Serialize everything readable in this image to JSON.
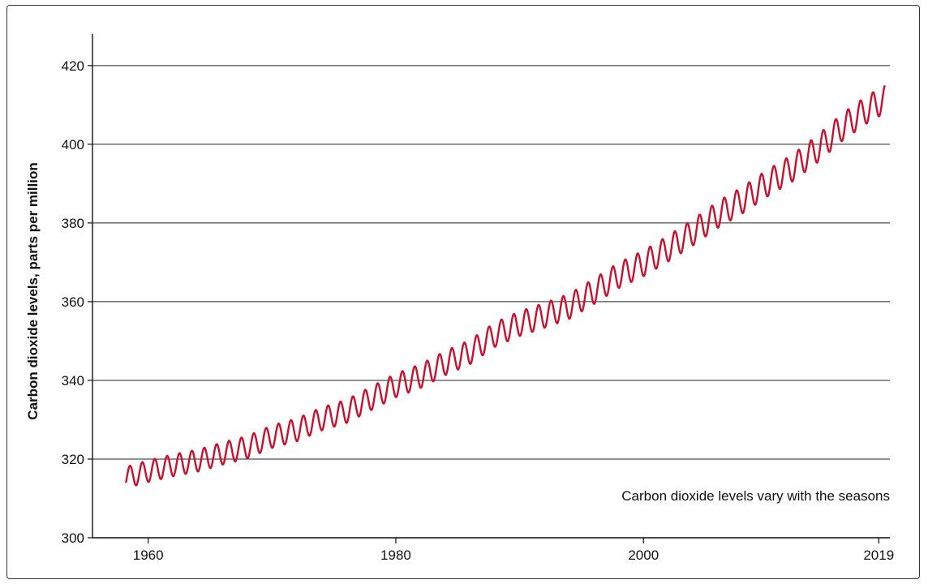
{
  "chart_data": {
    "type": "line",
    "title": "",
    "xlabel": "",
    "ylabel": "Carbon dioxide levels, parts per million",
    "xlim": [
      1955.5,
      2019.9
    ],
    "ylim": [
      300,
      428
    ],
    "x_ticks": [
      1960,
      1980,
      2000,
      2019
    ],
    "x_tick_labels": [
      "1960",
      "1980",
      "2000",
      "2019"
    ],
    "y_ticks": [
      300,
      320,
      340,
      360,
      380,
      400,
      420
    ],
    "y_tick_labels": [
      "300",
      "320",
      "340",
      "360",
      "380",
      "400",
      "420"
    ],
    "grid": "horizontal",
    "annotation": "Carbon dioxide levels vary with the seasons",
    "colors": {
      "line": "#c8102e",
      "grid": "#222222",
      "axis": "#111111"
    },
    "series": [
      {
        "x": [
          1958.2,
          1960.0,
          1962.0,
          1964.0,
          1966.0,
          1968.0,
          1970.0,
          1972.0,
          1974.0,
          1976.0,
          1978.0,
          1980.0,
          1982.0,
          1984.0,
          1986.0,
          1988.0,
          1990.0,
          1992.0,
          1994.0,
          1996.0,
          1998.0,
          2000.0,
          2002.0,
          2004.0,
          2006.0,
          2008.0,
          2010.0,
          2012.0,
          2014.0,
          2016.0,
          2018.0,
          2019.5
        ],
        "y": [
          315.3,
          316.9,
          318.4,
          319.6,
          321.4,
          323.0,
          325.7,
          327.4,
          330.2,
          332.1,
          335.4,
          338.7,
          341.1,
          344.4,
          347.2,
          351.6,
          354.4,
          356.5,
          358.8,
          362.6,
          366.7,
          369.7,
          373.5,
          377.6,
          382.1,
          385.8,
          390.1,
          393.9,
          398.7,
          404.2,
          408.7,
          411.5
        ],
        "seasonal_amplitude": 3.2
      }
    ]
  }
}
